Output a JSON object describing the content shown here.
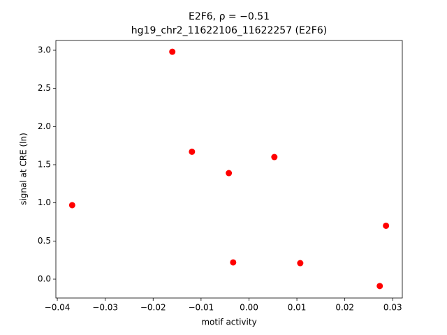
{
  "chart_data": {
    "type": "scatter",
    "title": "E2F6, ρ = −0.51",
    "subtitle": "hg19_chr2_11622106_11622257 (E2F6)",
    "x_label": "motif activity",
    "y_label": "signal at CRE (ln)",
    "color": "#ff0000",
    "x": [
      -0.0369,
      -0.016,
      -0.0119,
      -0.0042,
      -0.0033,
      0.0053,
      0.0107,
      0.0273,
      0.0286
    ],
    "values": [
      0.97,
      2.98,
      1.67,
      1.39,
      0.22,
      1.6,
      0.21,
      -0.09,
      0.7
    ],
    "xlim": [
      -0.0403,
      0.032
    ],
    "ylim": [
      -0.247,
      3.128
    ],
    "xticks": [
      {
        "value": -0.04,
        "label": "−0.04"
      },
      {
        "value": -0.03,
        "label": "−0.03"
      },
      {
        "value": -0.02,
        "label": "−0.02"
      },
      {
        "value": -0.01,
        "label": "−0.01"
      },
      {
        "value": 0,
        "label": "0.00"
      },
      0.01,
      0.02,
      0.03
    ],
    "yticks": [
      {
        "value": 0,
        "label": "0.0"
      },
      0.5,
      {
        "value": 1,
        "label": "1.0"
      },
      1.5,
      {
        "value": 2,
        "label": "2.0"
      },
      2.5,
      {
        "value": 3,
        "label": "3.0"
      }
    ]
  }
}
